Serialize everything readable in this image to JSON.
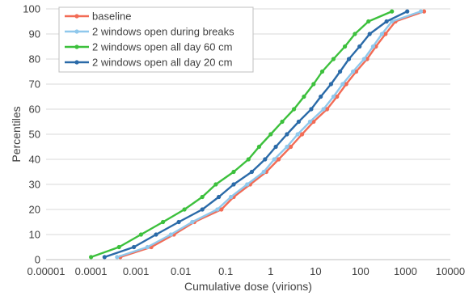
{
  "chart_data": {
    "type": "line",
    "xscale": "log",
    "xlim": [
      1e-05,
      10000
    ],
    "ylim": [
      0,
      100
    ],
    "xticks": [
      "0.00001",
      "0.0001",
      "0.001",
      "0.01",
      "0.1",
      "1",
      "10",
      "100",
      "1000",
      "10000"
    ],
    "yticks": [
      "0",
      "10",
      "20",
      "30",
      "40",
      "50",
      "60",
      "70",
      "80",
      "90",
      "100"
    ],
    "xlabel": "Cumulative dose (virions)",
    "ylabel": "Percentiles",
    "grid": "horizontal",
    "legend": "top-left",
    "series": [
      {
        "name": "baseline",
        "color": "#f26b55",
        "points": [
          [
            0.00045,
            1
          ],
          [
            0.0022,
            5
          ],
          [
            0.007,
            10
          ],
          [
            0.02,
            15
          ],
          [
            0.08,
            20
          ],
          [
            0.15,
            25
          ],
          [
            0.35,
            30
          ],
          [
            0.8,
            35
          ],
          [
            1.5,
            40
          ],
          [
            2.8,
            45
          ],
          [
            5,
            50
          ],
          [
            9,
            55
          ],
          [
            18,
            60
          ],
          [
            30,
            65
          ],
          [
            48,
            70
          ],
          [
            80,
            75
          ],
          [
            140,
            80
          ],
          [
            220,
            85
          ],
          [
            360,
            90
          ],
          [
            600,
            95
          ],
          [
            2600,
            99
          ]
        ]
      },
      {
        "name": "2 windows open during breaks",
        "color": "#8fc8ec",
        "points": [
          [
            0.00038,
            1
          ],
          [
            0.0018,
            5
          ],
          [
            0.006,
            10
          ],
          [
            0.018,
            15
          ],
          [
            0.065,
            20
          ],
          [
            0.13,
            25
          ],
          [
            0.3,
            30
          ],
          [
            0.7,
            35
          ],
          [
            1.2,
            40
          ],
          [
            2.3,
            45
          ],
          [
            4,
            50
          ],
          [
            7.5,
            55
          ],
          [
            15,
            60
          ],
          [
            25,
            65
          ],
          [
            40,
            70
          ],
          [
            68,
            75
          ],
          [
            120,
            80
          ],
          [
            190,
            85
          ],
          [
            300,
            90
          ],
          [
            500,
            95
          ],
          [
            2200,
            99
          ]
        ]
      },
      {
        "name": "2 windows open all day 60 cm",
        "color": "#3cc03c",
        "points": [
          [
            0.0001,
            1
          ],
          [
            0.00042,
            5
          ],
          [
            0.0013,
            10
          ],
          [
            0.004,
            15
          ],
          [
            0.012,
            20
          ],
          [
            0.03,
            25
          ],
          [
            0.06,
            30
          ],
          [
            0.15,
            35
          ],
          [
            0.32,
            40
          ],
          [
            0.55,
            45
          ],
          [
            1,
            50
          ],
          [
            1.8,
            55
          ],
          [
            3.3,
            60
          ],
          [
            5.5,
            65
          ],
          [
            9,
            70
          ],
          [
            14,
            75
          ],
          [
            25,
            80
          ],
          [
            45,
            85
          ],
          [
            75,
            90
          ],
          [
            150,
            95
          ],
          [
            500,
            99
          ]
        ]
      },
      {
        "name": "2 windows open all day 20 cm",
        "color": "#2a6aa8",
        "points": [
          [
            0.0002,
            1
          ],
          [
            0.0009,
            5
          ],
          [
            0.0028,
            10
          ],
          [
            0.009,
            15
          ],
          [
            0.03,
            20
          ],
          [
            0.07,
            25
          ],
          [
            0.15,
            30
          ],
          [
            0.38,
            35
          ],
          [
            0.75,
            40
          ],
          [
            1.3,
            45
          ],
          [
            2.3,
            50
          ],
          [
            4.2,
            55
          ],
          [
            8,
            60
          ],
          [
            13,
            65
          ],
          [
            22,
            70
          ],
          [
            35,
            75
          ],
          [
            55,
            80
          ],
          [
            95,
            85
          ],
          [
            160,
            90
          ],
          [
            380,
            95
          ],
          [
            1100,
            99
          ]
        ]
      }
    ]
  }
}
